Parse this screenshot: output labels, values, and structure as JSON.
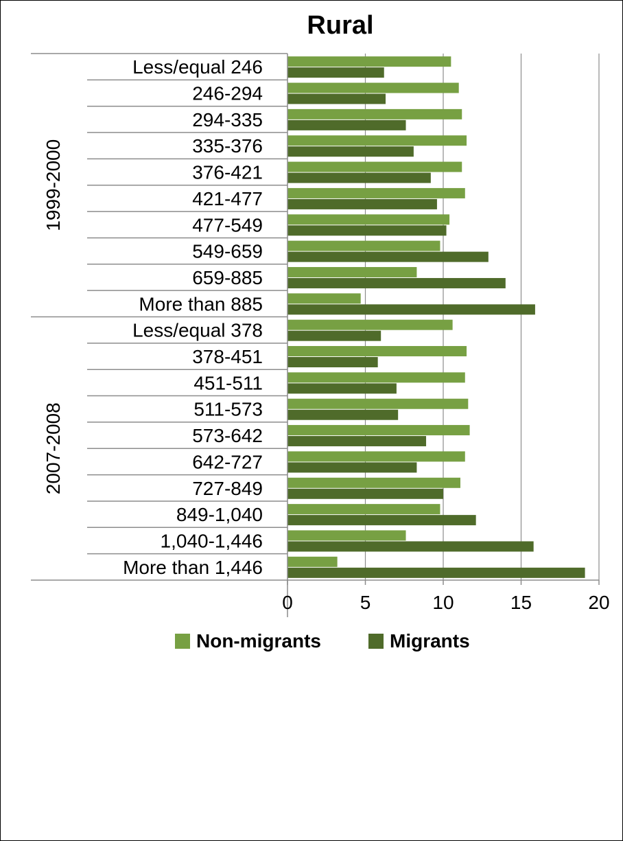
{
  "chart_data": {
    "type": "bar",
    "orientation": "horizontal",
    "title": "Rural",
    "groups": [
      {
        "name": "1999-2000",
        "categories": [
          "Less/equal 246",
          "246-294",
          "294-335",
          "335-376",
          "376-421",
          "421-477",
          "477-549",
          "549-659",
          "659-885",
          "More than 885"
        ]
      },
      {
        "name": "2007-2008",
        "categories": [
          "Less/equal 378",
          "378-451",
          "451-511",
          "511-573",
          "573-642",
          "642-727",
          "727-849",
          "849-1,040",
          "1,040-1,446",
          "More than 1,446"
        ]
      }
    ],
    "series": [
      {
        "name": "Non-migrants",
        "color": "#77A043",
        "values": [
          10.5,
          11.0,
          11.2,
          11.5,
          11.2,
          11.4,
          10.4,
          9.8,
          8.3,
          4.7,
          10.6,
          11.5,
          11.4,
          11.6,
          11.7,
          11.4,
          11.1,
          9.8,
          7.6,
          3.2
        ]
      },
      {
        "name": "Migrants",
        "color": "#4F6B2A",
        "values": [
          6.2,
          6.3,
          7.6,
          8.1,
          9.2,
          9.6,
          10.2,
          12.9,
          14.0,
          15.9,
          6.0,
          5.8,
          7.0,
          7.1,
          8.9,
          8.3,
          10.0,
          12.1,
          15.8,
          19.1
        ]
      }
    ],
    "xlim": [
      0,
      20
    ],
    "xticks": [
      "0",
      "5",
      "10",
      "15",
      "20"
    ],
    "xlabel": "",
    "ylabel": "",
    "grid": "vertical",
    "legend": "bottom"
  }
}
